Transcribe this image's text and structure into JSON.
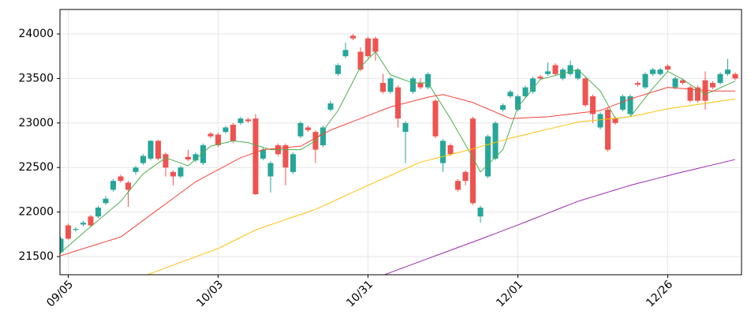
{
  "chart_data": {
    "type": "candlestick",
    "categories": [
      null,
      "09/05",
      null,
      null,
      null,
      null,
      null,
      null,
      null,
      null,
      null,
      null,
      null,
      null,
      null,
      null,
      null,
      null,
      null,
      null,
      null,
      "10/03",
      null,
      null,
      null,
      null,
      null,
      null,
      null,
      null,
      null,
      null,
      null,
      null,
      null,
      null,
      null,
      null,
      null,
      null,
      null,
      "10/31",
      null,
      null,
      null,
      null,
      null,
      null,
      null,
      null,
      null,
      null,
      null,
      null,
      null,
      null,
      null,
      null,
      null,
      null,
      null,
      "12/01",
      null,
      null,
      null,
      null,
      null,
      null,
      null,
      null,
      null,
      null,
      null,
      null,
      null,
      null,
      null,
      null,
      null,
      null,
      null,
      "12/26",
      null,
      null,
      null,
      null,
      null,
      null,
      null,
      null,
      null
    ],
    "open": [
      21550,
      21850,
      21800,
      21860,
      21950,
      21950,
      22100,
      22250,
      22400,
      22330,
      22450,
      22550,
      22600,
      22800,
      22650,
      22450,
      22400,
      22620,
      22580,
      22550,
      22880,
      22870,
      22900,
      22980,
      23000,
      23040,
      23050,
      22600,
      22400,
      22750,
      22750,
      22450,
      22850,
      22950,
      22900,
      22750,
      23150,
      23550,
      23750,
      23980,
      23800,
      23950,
      23950,
      23450,
      23350,
      23400,
      22900,
      23350,
      23450,
      23400,
      23250,
      22550,
      22750,
      22350,
      22450,
      23050,
      21950,
      22400,
      22600,
      23150,
      23300,
      23150,
      23300,
      23350,
      23520,
      23550,
      23650,
      23500,
      23550,
      23500,
      23500,
      23300,
      22950,
      23150,
      23050,
      23150,
      23100,
      23450,
      23400,
      23550,
      23550,
      23640,
      23400,
      23480,
      23400,
      23400,
      23480,
      23450,
      23450,
      23550,
      23550
    ],
    "high": [
      21720,
      21870,
      21830,
      21900,
      21970,
      22070,
      22180,
      22370,
      22420,
      22350,
      22520,
      22650,
      22810,
      22810,
      22670,
      22470,
      22520,
      22700,
      22670,
      22770,
      22900,
      22890,
      22970,
      23000,
      23070,
      23060,
      23100,
      22720,
      22570,
      22770,
      22770,
      22670,
      23020,
      22970,
      22920,
      22970,
      23250,
      23670,
      23900,
      24000,
      23850,
      23970,
      23970,
      23550,
      23520,
      23420,
      23020,
      23520,
      23500,
      23570,
      23270,
      22820,
      22770,
      22370,
      22470,
      23070,
      22070,
      22870,
      23020,
      23220,
      23370,
      23320,
      23420,
      23520,
      23540,
      23680,
      23670,
      23620,
      23700,
      23620,
      23520,
      23320,
      23120,
      23170,
      23070,
      23320,
      23320,
      23470,
      23570,
      23620,
      23620,
      23660,
      23520,
      23500,
      23420,
      23420,
      23580,
      23470,
      23570,
      23720,
      23570
    ],
    "low": [
      21530,
      21690,
      21780,
      21840,
      21830,
      21930,
      22080,
      22230,
      22330,
      22060,
      22420,
      22530,
      22580,
      22580,
      22400,
      22300,
      22380,
      22570,
      22560,
      22530,
      22830,
      22730,
      22880,
      22780,
      22980,
      23000,
      22190,
      22580,
      22220,
      22630,
      22300,
      22430,
      22830,
      22900,
      22550,
      22730,
      23130,
      23530,
      23730,
      23930,
      23580,
      23730,
      23700,
      23330,
      23330,
      22950,
      22550,
      23330,
      23380,
      23380,
      22830,
      22450,
      22630,
      22230,
      22300,
      22080,
      21880,
      22380,
      22580,
      23130,
      23280,
      23130,
      23280,
      23330,
      23480,
      23530,
      23530,
      23480,
      23530,
      23480,
      23180,
      23000,
      22930,
      22680,
      22980,
      23130,
      23080,
      23410,
      23380,
      23530,
      23530,
      23580,
      23380,
      23430,
      23230,
      23230,
      23150,
      23380,
      23430,
      23530,
      23480
    ],
    "close": [
      21700,
      21700,
      21810,
      21880,
      21850,
      22050,
      22150,
      22350,
      22350,
      22250,
      22500,
      22630,
      22800,
      22600,
      22500,
      22400,
      22500,
      22590,
      22650,
      22750,
      22850,
      22750,
      22950,
      22800,
      23050,
      23020,
      22200,
      22700,
      22550,
      22650,
      22500,
      22650,
      23000,
      22920,
      22700,
      22950,
      23220,
      23650,
      23820,
      23950,
      23600,
      23750,
      23800,
      23350,
      23500,
      23050,
      23000,
      23500,
      23400,
      23550,
      22850,
      22800,
      22650,
      22250,
      22350,
      22100,
      22050,
      22850,
      23000,
      23200,
      23350,
      23300,
      23400,
      23500,
      23500,
      23580,
      23550,
      23600,
      23650,
      23600,
      23200,
      23100,
      23100,
      22700,
      23000,
      23300,
      23300,
      23430,
      23550,
      23600,
      23600,
      23600,
      23500,
      23450,
      23250,
      23250,
      23250,
      23400,
      23550,
      23600,
      23500
    ],
    "up_color": "#26a69a",
    "down_color": "#ef5350",
    "series": [
      {
        "color": "#4caf50",
        "values": [
          21545,
          21618,
          21692,
          21765,
          21836,
          21907,
          21978,
          22049,
          22120,
          22223,
          22327,
          22430,
          22490,
          22550,
          22610,
          22580,
          22550,
          22520,
          22593,
          22667,
          22740,
          22760,
          22780,
          22800,
          22790,
          22780,
          22753,
          22727,
          22700,
          22700,
          22700,
          22700,
          22700,
          22750,
          22800,
          22913,
          23027,
          23140,
          23303,
          23467,
          23630,
          23715,
          23800,
          23670,
          23540,
          23510,
          23480,
          23450,
          23450,
          23450,
          23317,
          23183,
          23050,
          22903,
          22757,
          22610,
          22450,
          22533,
          22617,
          22700,
          22940,
          23180,
          23283,
          23387,
          23490,
          23512,
          23534,
          23556,
          23578,
          23600,
          23520,
          23440,
          23360,
          23205,
          23050,
          23060,
          23070,
          23177,
          23283,
          23390,
          23485,
          23580,
          23535,
          23490,
          23433,
          23377,
          23320,
          23358,
          23395,
          23433,
          23470
        ]
      },
      {
        "color": "#f44336",
        "values": [
          21510,
          21536,
          21563,
          21589,
          21615,
          21641,
          21668,
          21694,
          21720,
          21782,
          21844,
          21906,
          21968,
          22030,
          22092,
          22154,
          22216,
          22278,
          22340,
          22385,
          22430,
          22475,
          22520,
          22565,
          22610,
          22640,
          22670,
          22700,
          22708,
          22716,
          22724,
          22732,
          22740,
          22785,
          22830,
          22875,
          22920,
          22953,
          22985,
          23018,
          23050,
          23083,
          23115,
          23148,
          23180,
          23202,
          23224,
          23246,
          23268,
          23290,
          23305,
          23320,
          23298,
          23275,
          23253,
          23230,
          23194,
          23158,
          23122,
          23086,
          23050,
          23054,
          23058,
          23062,
          23066,
          23070,
          23080,
          23090,
          23100,
          23110,
          23120,
          23130,
          23140,
          23173,
          23205,
          23238,
          23270,
          23296,
          23322,
          23348,
          23374,
          23400,
          23393,
          23387,
          23380,
          23373,
          23367,
          23360,
          23360,
          23360,
          23360
        ]
      },
      {
        "color": "#ffc107",
        "values": [
          null,
          null,
          null,
          null,
          null,
          null,
          null,
          null,
          null,
          null,
          null,
          21280,
          21311,
          21342,
          21373,
          21404,
          21435,
          21466,
          21497,
          21528,
          21559,
          21590,
          21632,
          21674,
          21716,
          21758,
          21800,
          21829,
          21858,
          21886,
          21915,
          21944,
          21973,
          22001,
          22030,
          22069,
          22107,
          22146,
          22184,
          22223,
          22261,
          22300,
          22337,
          22374,
          22411,
          22449,
          22486,
          22523,
          22560,
          22581,
          22603,
          22624,
          22646,
          22667,
          22689,
          22710,
          22734,
          22758,
          22782,
          22806,
          22830,
          22850,
          22870,
          22890,
          22910,
          22930,
          22950,
          22970,
          22990,
          23010,
          23019,
          23027,
          23036,
          23044,
          23053,
          23061,
          23070,
          23088,
          23106,
          23124,
          23142,
          23160,
          23172,
          23184,
          23196,
          23209,
          23221,
          23233,
          23245,
          23258,
          23270
        ]
      },
      {
        "color": "#9c27b0",
        "values": [
          null,
          null,
          null,
          null,
          null,
          null,
          null,
          null,
          null,
          null,
          null,
          null,
          null,
          null,
          null,
          null,
          null,
          null,
          null,
          null,
          null,
          null,
          null,
          null,
          null,
          null,
          null,
          null,
          null,
          null,
          null,
          null,
          null,
          null,
          null,
          null,
          null,
          null,
          null,
          null,
          null,
          null,
          null,
          21290,
          21321,
          21353,
          21384,
          21415,
          21446,
          21478,
          21509,
          21540,
          21571,
          21602,
          21633,
          21664,
          21695,
          21727,
          21759,
          21791,
          21823,
          21855,
          21888,
          21921,
          21954,
          21988,
          22021,
          22054,
          22087,
          22120,
          22146,
          22171,
          22197,
          22223,
          22249,
          22274,
          22300,
          22322,
          22343,
          22365,
          22387,
          22408,
          22430,
          22450,
          22470,
          22490,
          22510,
          22530,
          22550,
          22570,
          22590
        ]
      }
    ],
    "ylim": [
      21296,
      24275
    ],
    "yticks": [
      21500,
      22000,
      22500,
      23000,
      23500,
      24000
    ],
    "grid": true
  }
}
